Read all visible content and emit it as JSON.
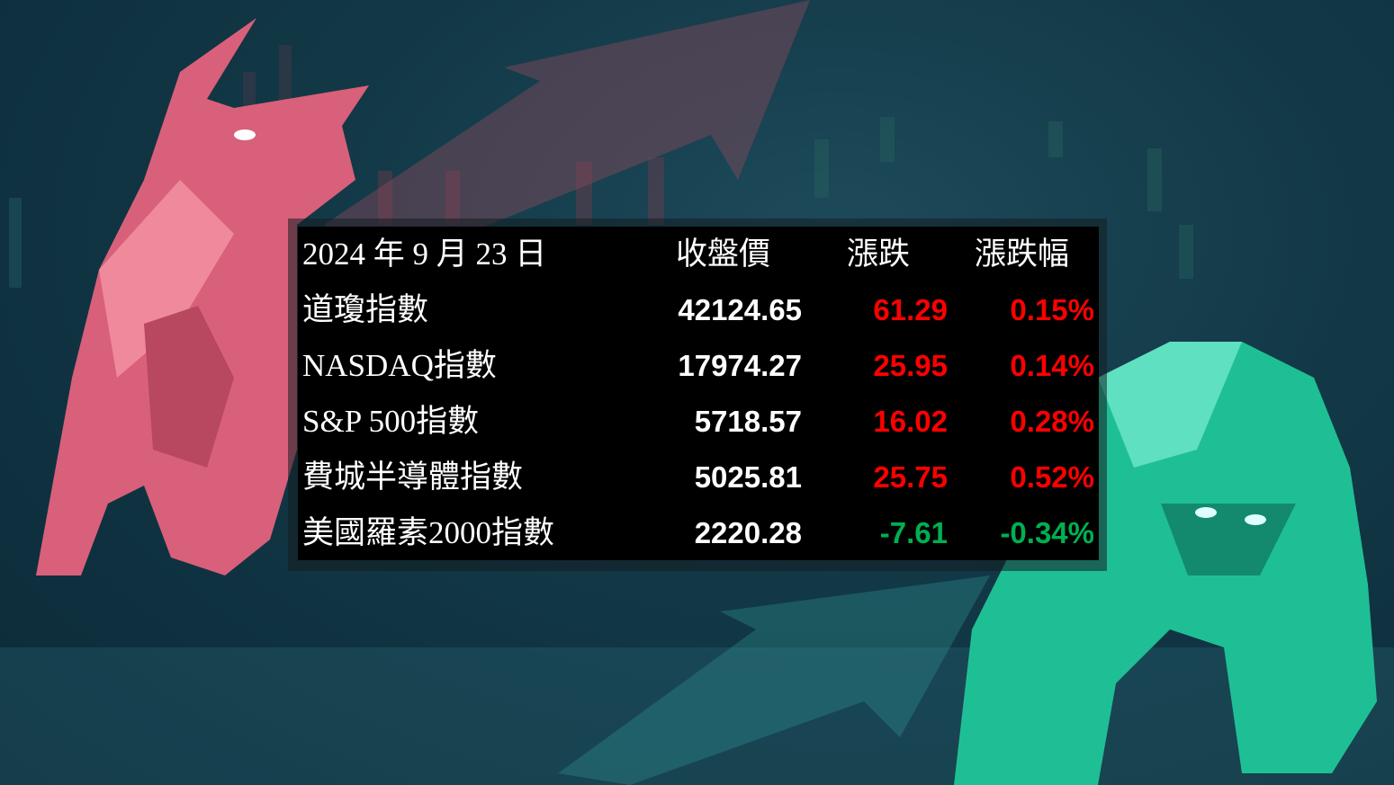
{
  "header": {
    "date": "2024 年 9 月 23 日",
    "close": "收盤價",
    "change": "漲跌",
    "change_pct": "漲跌幅"
  },
  "rows": [
    {
      "name": "道瓊指數",
      "close": "42124.65",
      "change": "61.29",
      "pct": "0.15%",
      "trend": "up"
    },
    {
      "name": "NASDAQ指數",
      "close": "17974.27",
      "change": "25.95",
      "pct": "0.14%",
      "trend": "up"
    },
    {
      "name": "S&P 500指數",
      "close": "5718.57",
      "change": "16.02",
      "pct": "0.28%",
      "trend": "up"
    },
    {
      "name": "費城半導體指數",
      "close": "5025.81",
      "change": "25.75",
      "pct": "0.52%",
      "trend": "up"
    },
    {
      "name": "美國羅素2000指數",
      "close": "2220.28",
      "change": "-7.61",
      "pct": "-0.34%",
      "trend": "down"
    }
  ],
  "colors": {
    "up": "#ff0000",
    "down": "#00b050",
    "background": "#123846",
    "bull": "#e0647a",
    "bear": "#1fc99a"
  }
}
